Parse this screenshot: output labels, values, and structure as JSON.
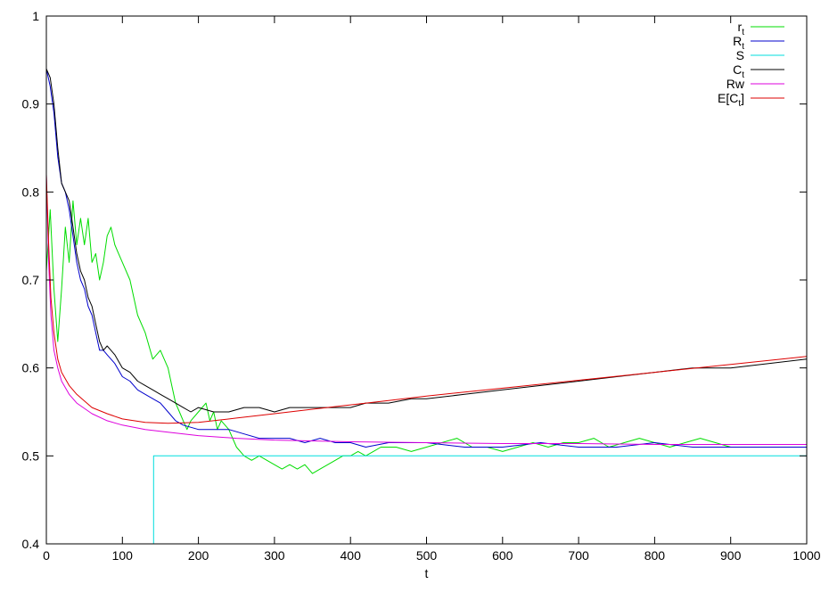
{
  "chart_data": {
    "type": "line",
    "xlabel": "t",
    "ylabel": "",
    "xlim": [
      0,
      1000
    ],
    "ylim": [
      0.4,
      1.0
    ],
    "xticks": [
      "0",
      "100",
      "200",
      "300",
      "400",
      "500",
      "600",
      "700",
      "800",
      "900",
      "1000"
    ],
    "yticks": [
      "0.4",
      "0.5",
      "0.6",
      "0.7",
      "0.8",
      "0.9",
      "1"
    ],
    "grid": false,
    "legend_position": "top-right",
    "series": [
      {
        "name": "r_t",
        "color": "#00dd00",
        "points": [
          [
            0,
            0.71
          ],
          [
            5,
            0.78
          ],
          [
            10,
            0.69
          ],
          [
            15,
            0.63
          ],
          [
            20,
            0.69
          ],
          [
            25,
            0.76
          ],
          [
            30,
            0.72
          ],
          [
            35,
            0.79
          ],
          [
            40,
            0.74
          ],
          [
            45,
            0.77
          ],
          [
            50,
            0.74
          ],
          [
            55,
            0.77
          ],
          [
            60,
            0.72
          ],
          [
            65,
            0.73
          ],
          [
            70,
            0.7
          ],
          [
            75,
            0.72
          ],
          [
            80,
            0.75
          ],
          [
            85,
            0.76
          ],
          [
            90,
            0.74
          ],
          [
            95,
            0.73
          ],
          [
            100,
            0.72
          ],
          [
            110,
            0.7
          ],
          [
            120,
            0.66
          ],
          [
            130,
            0.64
          ],
          [
            140,
            0.61
          ],
          [
            150,
            0.62
          ],
          [
            160,
            0.6
          ],
          [
            165,
            0.58
          ],
          [
            170,
            0.56
          ],
          [
            175,
            0.55
          ],
          [
            180,
            0.54
          ],
          [
            185,
            0.53
          ],
          [
            190,
            0.54
          ],
          [
            200,
            0.55
          ],
          [
            210,
            0.56
          ],
          [
            215,
            0.54
          ],
          [
            220,
            0.55
          ],
          [
            225,
            0.53
          ],
          [
            230,
            0.54
          ],
          [
            240,
            0.53
          ],
          [
            250,
            0.51
          ],
          [
            260,
            0.5
          ],
          [
            270,
            0.495
          ],
          [
            280,
            0.5
          ],
          [
            290,
            0.495
          ],
          [
            300,
            0.49
          ],
          [
            310,
            0.485
          ],
          [
            320,
            0.49
          ],
          [
            330,
            0.485
          ],
          [
            340,
            0.49
          ],
          [
            350,
            0.48
          ],
          [
            360,
            0.485
          ],
          [
            370,
            0.49
          ],
          [
            380,
            0.495
          ],
          [
            390,
            0.5
          ],
          [
            400,
            0.5
          ],
          [
            410,
            0.505
          ],
          [
            420,
            0.5
          ],
          [
            430,
            0.505
          ],
          [
            440,
            0.51
          ],
          [
            460,
            0.51
          ],
          [
            480,
            0.505
          ],
          [
            500,
            0.51
          ],
          [
            520,
            0.515
          ],
          [
            540,
            0.52
          ],
          [
            560,
            0.51
          ],
          [
            580,
            0.51
          ],
          [
            600,
            0.505
          ],
          [
            620,
            0.51
          ],
          [
            640,
            0.515
          ],
          [
            660,
            0.51
          ],
          [
            680,
            0.515
          ],
          [
            700,
            0.515
          ],
          [
            720,
            0.52
          ],
          [
            740,
            0.51
          ],
          [
            760,
            0.515
          ],
          [
            780,
            0.52
          ],
          [
            800,
            0.515
          ],
          [
            820,
            0.51
          ],
          [
            840,
            0.515
          ],
          [
            860,
            0.52
          ],
          [
            880,
            0.515
          ],
          [
            900,
            0.51
          ],
          [
            920,
            0.51
          ],
          [
            940,
            0.51
          ],
          [
            960,
            0.51
          ],
          [
            980,
            0.51
          ],
          [
            1000,
            0.51
          ]
        ]
      },
      {
        "name": "R_t",
        "color": "#0000cc",
        "points": [
          [
            0,
            0.94
          ],
          [
            5,
            0.92
          ],
          [
            10,
            0.89
          ],
          [
            15,
            0.84
          ],
          [
            20,
            0.81
          ],
          [
            25,
            0.8
          ],
          [
            30,
            0.78
          ],
          [
            35,
            0.75
          ],
          [
            40,
            0.72
          ],
          [
            45,
            0.7
          ],
          [
            50,
            0.69
          ],
          [
            55,
            0.67
          ],
          [
            60,
            0.66
          ],
          [
            65,
            0.64
          ],
          [
            70,
            0.62
          ],
          [
            75,
            0.62
          ],
          [
            80,
            0.615
          ],
          [
            85,
            0.61
          ],
          [
            90,
            0.605
          ],
          [
            100,
            0.59
          ],
          [
            110,
            0.585
          ],
          [
            120,
            0.575
          ],
          [
            130,
            0.57
          ],
          [
            140,
            0.565
          ],
          [
            150,
            0.56
          ],
          [
            160,
            0.55
          ],
          [
            170,
            0.54
          ],
          [
            180,
            0.535
          ],
          [
            200,
            0.53
          ],
          [
            220,
            0.53
          ],
          [
            240,
            0.53
          ],
          [
            260,
            0.525
          ],
          [
            280,
            0.52
          ],
          [
            300,
            0.52
          ],
          [
            320,
            0.52
          ],
          [
            340,
            0.515
          ],
          [
            360,
            0.52
          ],
          [
            380,
            0.515
          ],
          [
            400,
            0.515
          ],
          [
            420,
            0.51
          ],
          [
            450,
            0.515
          ],
          [
            480,
            0.515
          ],
          [
            500,
            0.515
          ],
          [
            550,
            0.51
          ],
          [
            600,
            0.51
          ],
          [
            650,
            0.515
          ],
          [
            700,
            0.51
          ],
          [
            750,
            0.51
          ],
          [
            800,
            0.515
          ],
          [
            850,
            0.51
          ],
          [
            900,
            0.51
          ],
          [
            950,
            0.51
          ],
          [
            1000,
            0.51
          ]
        ]
      },
      {
        "name": "S",
        "color": "#00dddd",
        "points": [
          [
            0,
            0.4
          ],
          [
            141,
            0.4
          ],
          [
            141,
            0.5
          ],
          [
            1000,
            0.5
          ]
        ]
      },
      {
        "name": "C_t",
        "color": "#000000",
        "points": [
          [
            0,
            0.94
          ],
          [
            5,
            0.93
          ],
          [
            10,
            0.9
          ],
          [
            15,
            0.85
          ],
          [
            20,
            0.81
          ],
          [
            25,
            0.8
          ],
          [
            30,
            0.79
          ],
          [
            35,
            0.76
          ],
          [
            40,
            0.73
          ],
          [
            45,
            0.71
          ],
          [
            50,
            0.7
          ],
          [
            55,
            0.68
          ],
          [
            60,
            0.67
          ],
          [
            65,
            0.65
          ],
          [
            70,
            0.63
          ],
          [
            75,
            0.62
          ],
          [
            80,
            0.625
          ],
          [
            85,
            0.62
          ],
          [
            90,
            0.615
          ],
          [
            100,
            0.6
          ],
          [
            110,
            0.595
          ],
          [
            120,
            0.585
          ],
          [
            130,
            0.58
          ],
          [
            140,
            0.575
          ],
          [
            150,
            0.57
          ],
          [
            160,
            0.565
          ],
          [
            170,
            0.56
          ],
          [
            180,
            0.555
          ],
          [
            190,
            0.55
          ],
          [
            200,
            0.555
          ],
          [
            220,
            0.55
          ],
          [
            240,
            0.55
          ],
          [
            260,
            0.555
          ],
          [
            280,
            0.555
          ],
          [
            300,
            0.55
          ],
          [
            320,
            0.555
          ],
          [
            340,
            0.555
          ],
          [
            360,
            0.555
          ],
          [
            380,
            0.555
          ],
          [
            400,
            0.555
          ],
          [
            420,
            0.56
          ],
          [
            450,
            0.56
          ],
          [
            480,
            0.565
          ],
          [
            500,
            0.565
          ],
          [
            550,
            0.57
          ],
          [
            600,
            0.575
          ],
          [
            650,
            0.58
          ],
          [
            700,
            0.585
          ],
          [
            750,
            0.59
          ],
          [
            800,
            0.595
          ],
          [
            850,
            0.6
          ],
          [
            900,
            0.6
          ],
          [
            950,
            0.605
          ],
          [
            1000,
            0.61
          ]
        ]
      },
      {
        "name": "Rw",
        "color": "#dd00dd",
        "points": [
          [
            0,
            0.82
          ],
          [
            3,
            0.72
          ],
          [
            6,
            0.66
          ],
          [
            10,
            0.62
          ],
          [
            15,
            0.6
          ],
          [
            20,
            0.585
          ],
          [
            30,
            0.57
          ],
          [
            40,
            0.56
          ],
          [
            60,
            0.548
          ],
          [
            80,
            0.54
          ],
          [
            100,
            0.535
          ],
          [
            130,
            0.53
          ],
          [
            160,
            0.527
          ],
          [
            200,
            0.523
          ],
          [
            250,
            0.52
          ],
          [
            300,
            0.518
          ],
          [
            400,
            0.516
          ],
          [
            500,
            0.515
          ],
          [
            600,
            0.514
          ],
          [
            700,
            0.514
          ],
          [
            800,
            0.513
          ],
          [
            900,
            0.513
          ],
          [
            1000,
            0.513
          ]
        ]
      },
      {
        "name": "E[C_t]",
        "color": "#dd0000",
        "points": [
          [
            0,
            0.82
          ],
          [
            3,
            0.74
          ],
          [
            6,
            0.68
          ],
          [
            10,
            0.64
          ],
          [
            15,
            0.61
          ],
          [
            20,
            0.595
          ],
          [
            30,
            0.58
          ],
          [
            40,
            0.57
          ],
          [
            60,
            0.555
          ],
          [
            80,
            0.548
          ],
          [
            100,
            0.542
          ],
          [
            130,
            0.538
          ],
          [
            160,
            0.537
          ],
          [
            200,
            0.538
          ],
          [
            250,
            0.543
          ],
          [
            300,
            0.548
          ],
          [
            350,
            0.553
          ],
          [
            400,
            0.558
          ],
          [
            450,
            0.563
          ],
          [
            500,
            0.568
          ],
          [
            600,
            0.577
          ],
          [
            700,
            0.586
          ],
          [
            800,
            0.595
          ],
          [
            900,
            0.604
          ],
          [
            1000,
            0.613
          ]
        ]
      }
    ]
  }
}
